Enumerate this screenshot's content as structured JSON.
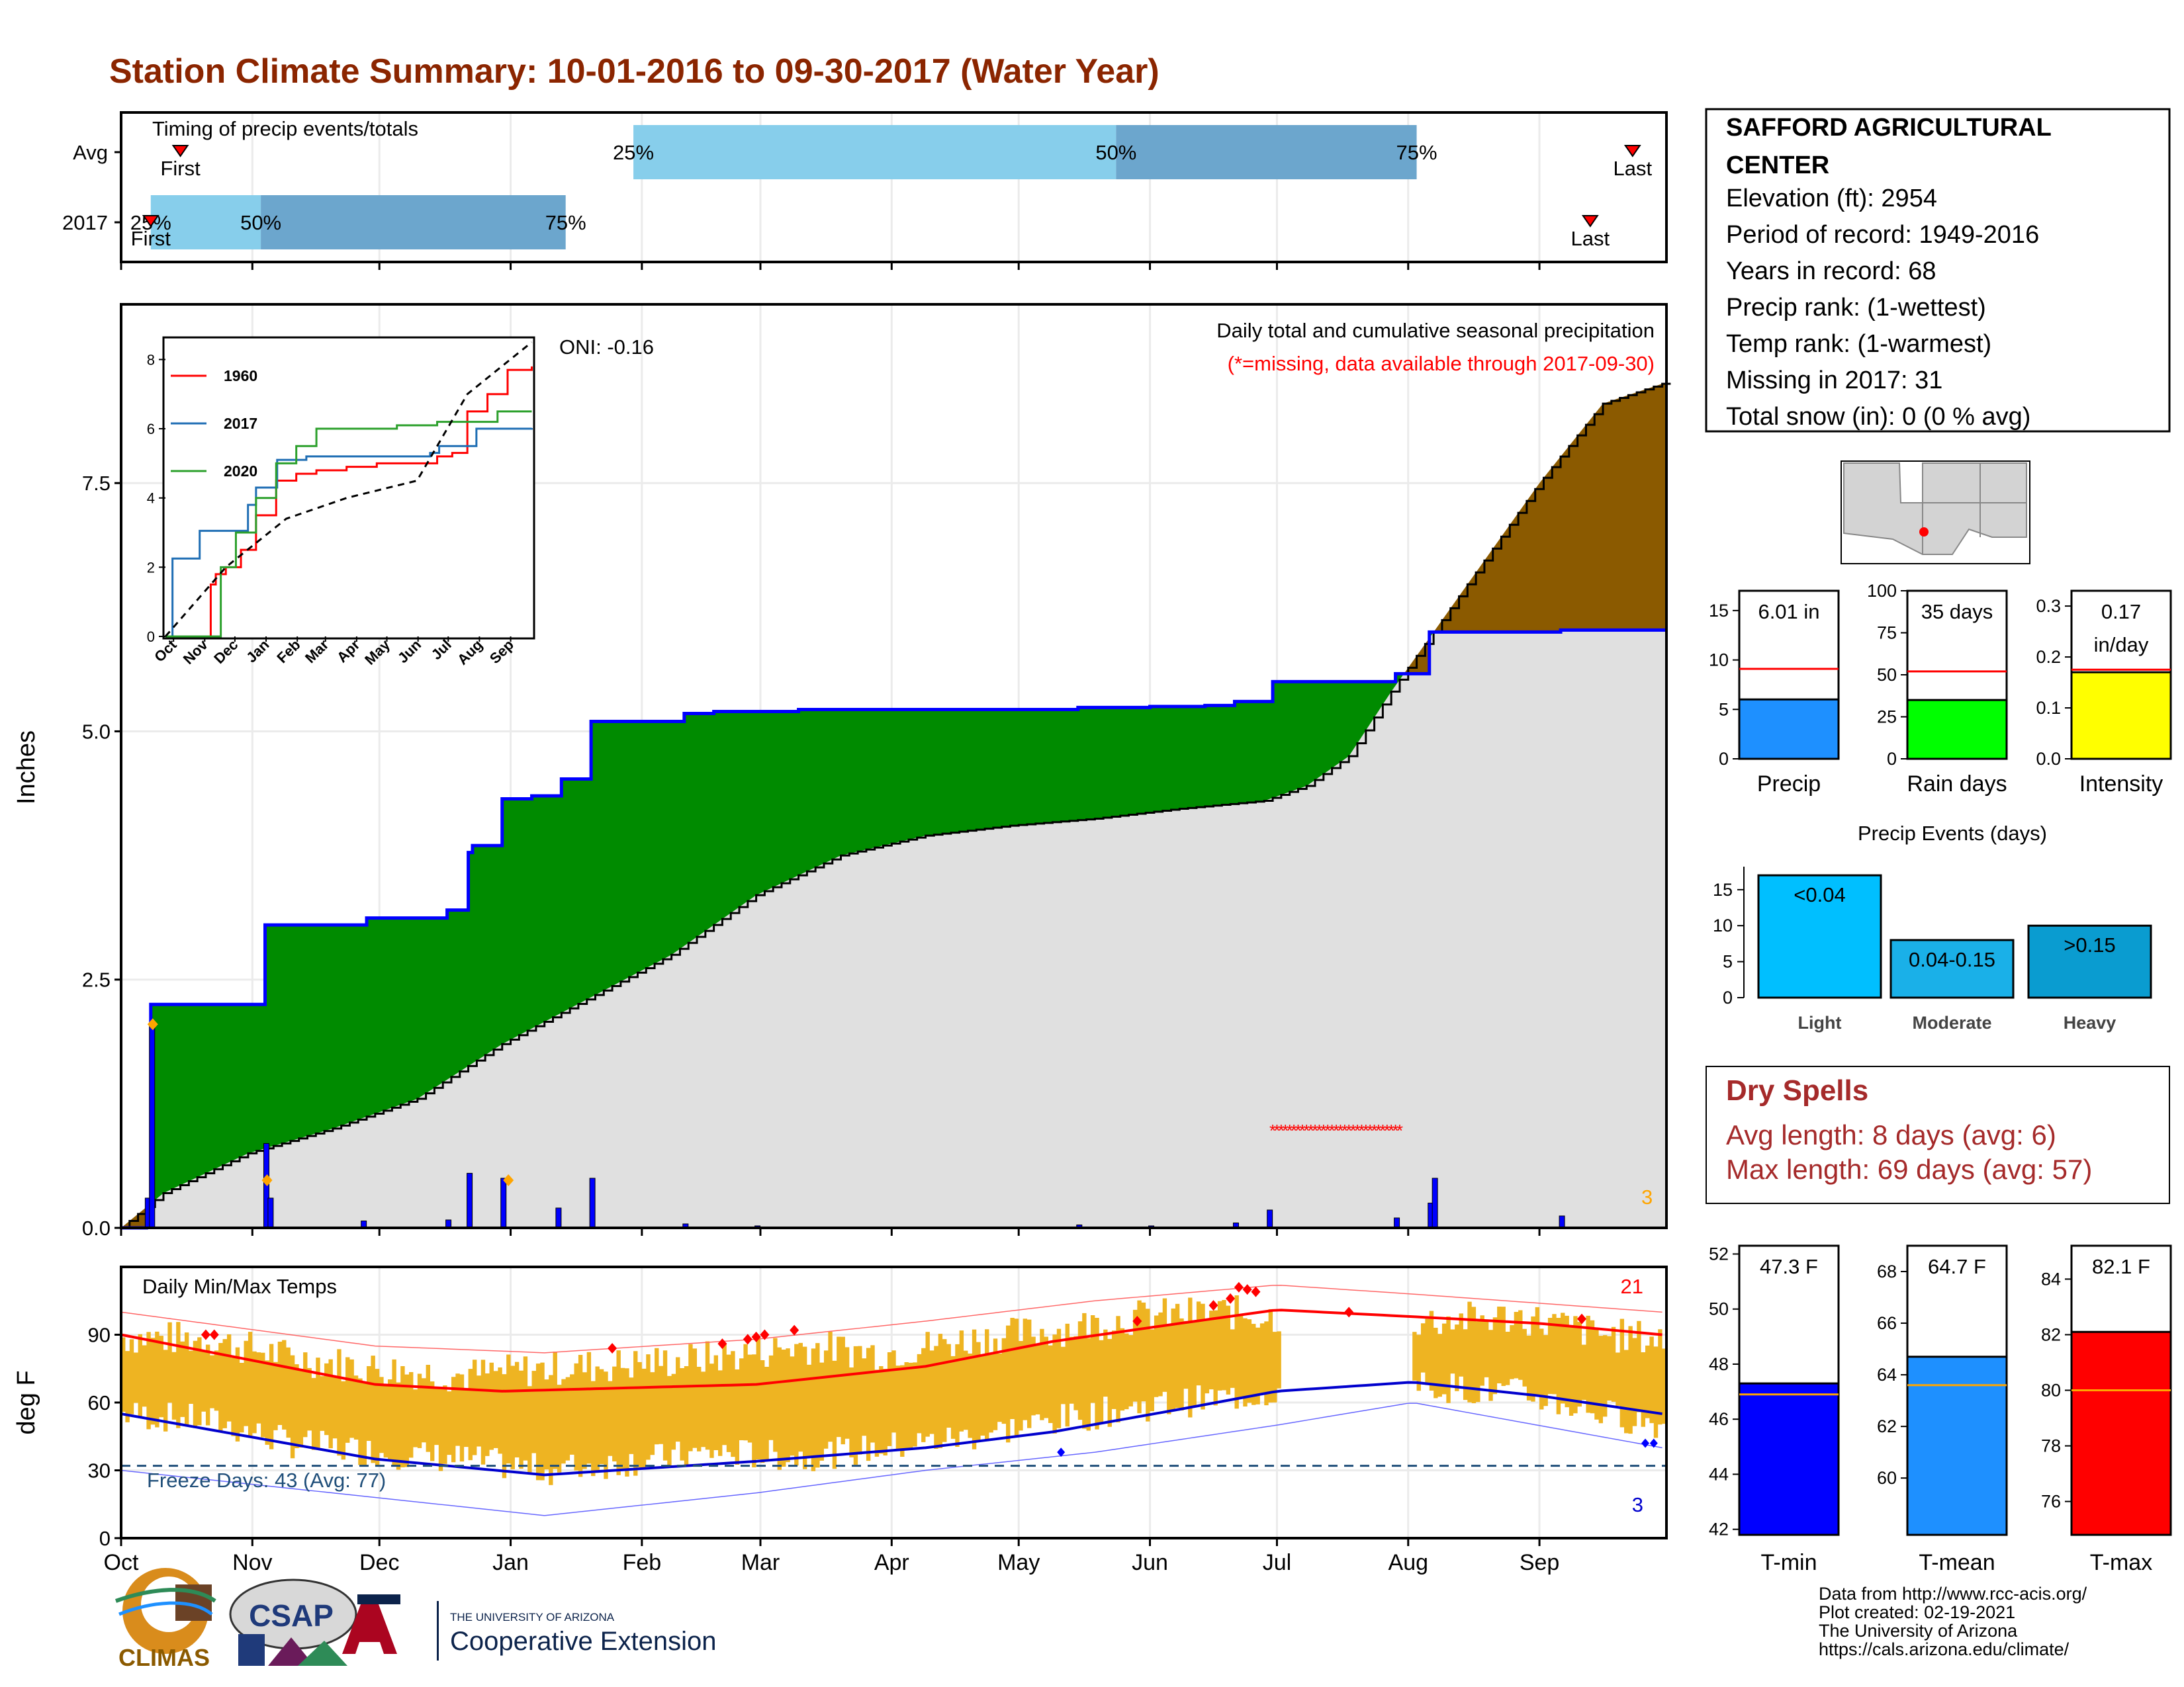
{
  "title": "Station Climate Summary: 10-01-2016 to 09-30-2017 (Water Year)",
  "colors": {
    "title": "#8B2500",
    "bar_light": "#87CEEB",
    "bar_dark": "#6CA6CD",
    "above_normal": "#008B00",
    "below_normal": "#8B5A00",
    "normal_fill": "#E0E0E0",
    "daily_precip": "#0000FF",
    "temp_bar": "#EEB422",
    "tmax_line": "#FF0000",
    "tmin_line": "#0000CD",
    "precip_box": "#1E90FF",
    "raindays_box": "#00FF00",
    "intensity_box": "#FFFF00",
    "events_bar": "#00BFFF",
    "tmin_box": "#0000FF",
    "tmean_box": "#1E90FF",
    "tmax_box": "#FF0000",
    "dry_spells_text": "#A52A2A"
  },
  "months": [
    "Oct",
    "Nov",
    "Dec",
    "Jan",
    "Feb",
    "Mar",
    "Apr",
    "May",
    "Jun",
    "Jul",
    "Aug",
    "Sep"
  ],
  "timing": {
    "title": "Timing of precip events/totals",
    "rows": [
      {
        "label": "Avg",
        "first_doy": 14,
        "q25": 121,
        "q50": 235,
        "q75": 306,
        "last_doy": 357,
        "first_label": "First",
        "last_label": "Last",
        "q25_label": "25%",
        "q50_label": "50%",
        "q75_label": "75%"
      },
      {
        "label": "2017",
        "first_doy": 7,
        "q25": 7,
        "q50": 33,
        "q75": 105,
        "last_doy": 347,
        "first_label": "First",
        "last_label": "Last",
        "q25_label": "25%",
        "q50_label": "50%",
        "q75_label": "75%"
      }
    ]
  },
  "precip": {
    "ylabel": "Inches",
    "yticks": [
      "0.0",
      "2.5",
      "5.0",
      "7.5"
    ],
    "ylim": [
      0,
      9.3
    ],
    "subtitle": "Daily total and cumulative seasonal precipitation",
    "missing_note": "(*=missing, data available through 2017-09-30)",
    "oni": "ONI: -0.16",
    "corner_count": "3",
    "missing_range": [
      272,
      302
    ],
    "missing_level": 1.0,
    "obs_cumulative": [
      [
        0,
        0
      ],
      [
        6,
        0.1
      ],
      [
        7,
        2.25
      ],
      [
        33,
        2.25
      ],
      [
        34,
        3.05
      ],
      [
        57,
        3.05
      ],
      [
        58,
        3.12
      ],
      [
        76,
        3.12
      ],
      [
        77,
        3.2
      ],
      [
        81,
        3.2
      ],
      [
        82,
        3.78
      ],
      [
        83,
        3.85
      ],
      [
        89,
        3.85
      ],
      [
        90,
        4.32
      ],
      [
        97,
        4.35
      ],
      [
        103,
        4.35
      ],
      [
        104,
        4.52
      ],
      [
        110,
        4.52
      ],
      [
        111,
        5.1
      ],
      [
        132,
        5.1
      ],
      [
        133,
        5.18
      ],
      [
        140,
        5.2
      ],
      [
        160,
        5.22
      ],
      [
        220,
        5.22
      ],
      [
        226,
        5.24
      ],
      [
        243,
        5.25
      ],
      [
        256,
        5.26
      ],
      [
        263,
        5.3
      ],
      [
        272,
        5.5
      ],
      [
        300,
        5.5
      ],
      [
        301,
        5.58
      ],
      [
        308,
        5.58
      ],
      [
        309,
        6.0
      ],
      [
        340,
        6.02
      ],
      [
        364,
        6.02
      ]
    ],
    "normal_cumulative": [
      [
        0,
        0
      ],
      [
        10,
        0.35
      ],
      [
        30,
        0.75
      ],
      [
        50,
        1.0
      ],
      [
        70,
        1.3
      ],
      [
        90,
        1.85
      ],
      [
        110,
        2.3
      ],
      [
        130,
        2.75
      ],
      [
        150,
        3.35
      ],
      [
        170,
        3.75
      ],
      [
        190,
        3.95
      ],
      [
        210,
        4.05
      ],
      [
        230,
        4.12
      ],
      [
        250,
        4.22
      ],
      [
        270,
        4.3
      ],
      [
        280,
        4.45
      ],
      [
        290,
        4.75
      ],
      [
        300,
        5.4
      ],
      [
        320,
        6.6
      ],
      [
        335,
        7.5
      ],
      [
        350,
        8.3
      ],
      [
        364,
        8.5
      ]
    ],
    "daily_bars": [
      [
        6,
        0.3
      ],
      [
        7,
        2.05
      ],
      [
        34,
        0.85
      ],
      [
        35,
        0.3
      ],
      [
        57,
        0.07
      ],
      [
        77,
        0.08
      ],
      [
        82,
        0.55
      ],
      [
        90,
        0.5
      ],
      [
        103,
        0.2
      ],
      [
        111,
        0.5
      ],
      [
        133,
        0.04
      ],
      [
        150,
        0.02
      ],
      [
        226,
        0.03
      ],
      [
        243,
        0.02
      ],
      [
        263,
        0.05
      ],
      [
        271,
        0.18
      ],
      [
        301,
        0.1
      ],
      [
        309,
        0.25
      ],
      [
        310,
        0.5
      ],
      [
        340,
        0.12
      ]
    ],
    "diamonds": [
      [
        7,
        2.05
      ],
      [
        34,
        0.48
      ],
      [
        91,
        0.48
      ]
    ],
    "inset": {
      "yticks": [
        "0",
        "2",
        "4",
        "6",
        "8"
      ],
      "months": [
        "Oct",
        "Nov",
        "Dec",
        "Jan",
        "Feb",
        "Mar",
        "Apr",
        "May",
        "Jun",
        "Jul",
        "Aug",
        "Sep"
      ],
      "series": [
        {
          "name": "1960",
          "color": "#FF0000",
          "points": [
            [
              0,
              0
            ],
            [
              40,
              0
            ],
            [
              45,
              1.5
            ],
            [
              50,
              1.8
            ],
            [
              60,
              2.0
            ],
            [
              70,
              2.0
            ],
            [
              75,
              2.5
            ],
            [
              90,
              3.5
            ],
            [
              110,
              4.5
            ],
            [
              130,
              4.7
            ],
            [
              150,
              4.8
            ],
            [
              180,
              4.9
            ],
            [
              210,
              5.0
            ],
            [
              270,
              5.2
            ],
            [
              285,
              5.3
            ],
            [
              300,
              6.5
            ],
            [
              320,
              7.0
            ],
            [
              340,
              7.7
            ],
            [
              364,
              7.8
            ]
          ]
        },
        {
          "name": "2017",
          "color": "#1F6EB4",
          "points": [
            [
              0,
              0
            ],
            [
              7,
              2.25
            ],
            [
              34,
              3.05
            ],
            [
              82,
              3.8
            ],
            [
              90,
              4.3
            ],
            [
              111,
              5.1
            ],
            [
              140,
              5.2
            ],
            [
              263,
              5.3
            ],
            [
              272,
              5.5
            ],
            [
              309,
              6.0
            ],
            [
              364,
              6.02
            ]
          ]
        },
        {
          "name": "2020",
          "color": "#2CA02C",
          "points": [
            [
              0,
              0
            ],
            [
              50,
              0
            ],
            [
              55,
              2.0
            ],
            [
              70,
              3.0
            ],
            [
              90,
              4.0
            ],
            [
              110,
              5.0
            ],
            [
              130,
              5.5
            ],
            [
              150,
              6.0
            ],
            [
              190,
              6.0
            ],
            [
              230,
              6.1
            ],
            [
              270,
              6.2
            ],
            [
              300,
              6.2
            ],
            [
              330,
              6.5
            ],
            [
              364,
              6.5
            ]
          ]
        }
      ],
      "avg_points": [
        [
          0,
          0
        ],
        [
          60,
          2.0
        ],
        [
          120,
          3.4
        ],
        [
          180,
          4.0
        ],
        [
          250,
          4.5
        ],
        [
          300,
          7.0
        ],
        [
          364,
          8.5
        ]
      ]
    }
  },
  "temps": {
    "title": "Daily Min/Max Temps",
    "ylabel": "deg F",
    "yticks": [
      "0",
      "30",
      "60",
      "90"
    ],
    "ylim": [
      0,
      120
    ],
    "freeze_label": "Freeze Days: 43 (Avg: 77)",
    "freeze_line": 32,
    "hot_count": "21",
    "cold_count": "3",
    "missing_range": [
      274,
      304
    ],
    "normal_tmax": [
      [
        0,
        90
      ],
      [
        60,
        68
      ],
      [
        90,
        65
      ],
      [
        150,
        68
      ],
      [
        190,
        76
      ],
      [
        220,
        87
      ],
      [
        250,
        95
      ],
      [
        273,
        101
      ],
      [
        305,
        98
      ],
      [
        335,
        95
      ],
      [
        364,
        90
      ]
    ],
    "normal_tmin": [
      [
        0,
        55
      ],
      [
        60,
        35
      ],
      [
        100,
        28
      ],
      [
        150,
        34
      ],
      [
        190,
        40
      ],
      [
        220,
        47
      ],
      [
        250,
        57
      ],
      [
        273,
        65
      ],
      [
        305,
        69
      ],
      [
        335,
        63
      ],
      [
        364,
        55
      ]
    ],
    "record_tmax": [
      [
        0,
        100
      ],
      [
        60,
        85
      ],
      [
        100,
        82
      ],
      [
        150,
        88
      ],
      [
        190,
        96
      ],
      [
        230,
        105
      ],
      [
        273,
        112
      ],
      [
        305,
        108
      ],
      [
        364,
        100
      ]
    ],
    "record_tmin": [
      [
        0,
        30
      ],
      [
        60,
        18
      ],
      [
        100,
        10
      ],
      [
        150,
        20
      ],
      [
        190,
        30
      ],
      [
        230,
        38
      ],
      [
        273,
        50
      ],
      [
        305,
        60
      ],
      [
        364,
        40
      ]
    ],
    "obs_tmax": [
      [
        0,
        89
      ],
      [
        20,
        88
      ],
      [
        40,
        80
      ],
      [
        60,
        75
      ],
      [
        80,
        72
      ],
      [
        100,
        75
      ],
      [
        120,
        77
      ],
      [
        140,
        80
      ],
      [
        160,
        85
      ],
      [
        180,
        82
      ],
      [
        200,
        88
      ],
      [
        220,
        92
      ],
      [
        240,
        98
      ],
      [
        260,
        100
      ],
      [
        273,
        98
      ],
      [
        305,
        96
      ],
      [
        330,
        98
      ],
      [
        350,
        90
      ],
      [
        364,
        88
      ]
    ],
    "obs_tmin": [
      [
        0,
        55
      ],
      [
        20,
        52
      ],
      [
        40,
        42
      ],
      [
        60,
        38
      ],
      [
        80,
        35
      ],
      [
        100,
        30
      ],
      [
        120,
        34
      ],
      [
        140,
        38
      ],
      [
        160,
        36
      ],
      [
        180,
        40
      ],
      [
        200,
        45
      ],
      [
        220,
        52
      ],
      [
        240,
        58
      ],
      [
        260,
        62
      ],
      [
        273,
        65
      ],
      [
        305,
        68
      ],
      [
        330,
        64
      ],
      [
        350,
        55
      ],
      [
        364,
        50
      ]
    ]
  },
  "station": {
    "name": "SAFFORD AGRICULTURAL CENTER",
    "lines": [
      "Elevation (ft): 2954",
      "Period of record: 1949-2016",
      "Years in record: 68",
      "Precip rank:  (1-wettest)",
      "Temp rank:  (1-warmest)",
      "Missing in 2017: 31",
      "Total snow (in): 0 (0 % avg)"
    ]
  },
  "summary_boxes": [
    {
      "label": "Precip",
      "value_text": "6.01 in",
      "value": 6.01,
      "avg": 9.1,
      "ymax": 17,
      "yticks": [
        "0",
        "5",
        "10",
        "15"
      ],
      "tickvals": [
        0,
        5,
        10,
        15
      ],
      "color": "#1E90FF"
    },
    {
      "label": "Rain days",
      "value_text": "35 days",
      "value": 35,
      "avg": 52,
      "ymax": 100,
      "yticks": [
        "0",
        "25",
        "50",
        "75",
        "100"
      ],
      "tickvals": [
        0,
        25,
        50,
        75,
        100
      ],
      "color": "#00FF00"
    },
    {
      "label": "Intensity",
      "value_text": "0.17\nin/day",
      "value": 0.17,
      "avg": 0.175,
      "ymax": 0.33,
      "yticks": [
        "0.0",
        "0.1",
        "0.2",
        "0.3"
      ],
      "tickvals": [
        0,
        0.1,
        0.2,
        0.3
      ],
      "color": "#FFFF00"
    }
  ],
  "events": {
    "title": "Precip Events (days)",
    "categories": [
      "Light",
      "Moderate",
      "Heavy"
    ],
    "bar_labels": [
      "<0.04",
      "0.04-0.15",
      ">0.15"
    ],
    "values": [
      17,
      8,
      10
    ],
    "yticks": [
      "0",
      "5",
      "10",
      "15"
    ],
    "ymax": 18.2
  },
  "dry_spells": {
    "title": "Dry Spells",
    "avg_line": "Avg length: 8 days (avg: 6)",
    "max_line": "Max length: 69 days (avg: 57)"
  },
  "temp_boxes": [
    {
      "label": "T-min",
      "value_text": "47.3 F",
      "value": 47.3,
      "avg": 46.9,
      "ymin": 41.8,
      "ymax": 52.3,
      "yticks": [
        "42",
        "44",
        "46",
        "48",
        "50",
        "52"
      ],
      "tickvals": [
        42,
        44,
        46,
        48,
        50,
        52
      ],
      "color": "#0000FF"
    },
    {
      "label": "T-mean",
      "value_text": "64.7 F",
      "value": 64.7,
      "avg": 63.6,
      "ymin": 57.8,
      "ymax": 69.0,
      "yticks": [
        "60",
        "62",
        "64",
        "66",
        "68"
      ],
      "tickvals": [
        60,
        62,
        64,
        66,
        68
      ],
      "color": "#1E90FF"
    },
    {
      "label": "T-max",
      "value_text": "82.1 F",
      "value": 82.1,
      "avg": 80.0,
      "ymin": 74.8,
      "ymax": 85.2,
      "yticks": [
        "76",
        "78",
        "80",
        "82",
        "84"
      ],
      "tickvals": [
        76,
        78,
        80,
        82,
        84
      ],
      "color": "#FF0000"
    }
  ],
  "footer": {
    "lines": [
      "Data from http://www.rcc-acis.org/",
      "Plot created: 02-19-2021",
      "The University of Arizona",
      "https://cals.arizona.edu/climate/"
    ]
  },
  "logos": {
    "climas": "CLIMAS",
    "csap": "CSAP",
    "ua_small": "THE UNIVERSITY OF ARIZONA",
    "ua_big": "Cooperative Extension"
  }
}
